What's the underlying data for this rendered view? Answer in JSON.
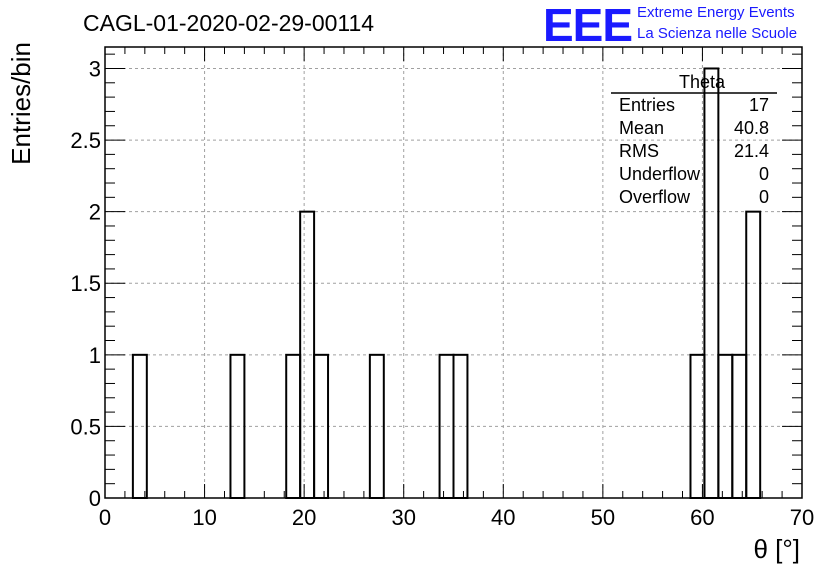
{
  "header": {
    "title": "CAGL-01-2020-02-29-00114",
    "logo_text": "EEE",
    "logo_line1": "Extreme Energy Events",
    "logo_line2": "La Scienza nelle Scuole"
  },
  "stats_box": {
    "name": "Theta",
    "rows": [
      {
        "label": "Entries",
        "value": "17"
      },
      {
        "label": "Mean",
        "value": "40.8"
      },
      {
        "label": "RMS",
        "value": "21.4"
      },
      {
        "label": "Underflow",
        "value": "0"
      },
      {
        "label": "Overflow",
        "value": "0"
      }
    ]
  },
  "colors": {
    "logo": "#1a1aff",
    "grid": "#a0a0a0",
    "line": "#000000"
  },
  "chart_data": {
    "type": "bar",
    "title": "CAGL-01-2020-02-29-00114",
    "xlabel": "θ [°]",
    "ylabel": "Entries/bin",
    "xlim": [
      0,
      70
    ],
    "ylim": [
      0,
      3.15
    ],
    "grid": true,
    "xticks": [
      "0",
      "10",
      "20",
      "30",
      "40",
      "50",
      "60",
      "70"
    ],
    "yticks": [
      "0",
      "0.5",
      "1",
      "1.5",
      "2",
      "2.5",
      "3"
    ],
    "bins": [
      {
        "x0": 2.8,
        "x1": 4.2,
        "value": 1
      },
      {
        "x0": 12.6,
        "x1": 14.0,
        "value": 1
      },
      {
        "x0": 18.2,
        "x1": 19.6,
        "value": 1
      },
      {
        "x0": 19.6,
        "x1": 21.0,
        "value": 2
      },
      {
        "x0": 21.0,
        "x1": 22.4,
        "value": 1
      },
      {
        "x0": 26.6,
        "x1": 28.0,
        "value": 1
      },
      {
        "x0": 33.6,
        "x1": 35.0,
        "value": 1
      },
      {
        "x0": 35.0,
        "x1": 36.4,
        "value": 1
      },
      {
        "x0": 58.8,
        "x1": 60.2,
        "value": 1
      },
      {
        "x0": 60.2,
        "x1": 61.6,
        "value": 3
      },
      {
        "x0": 61.6,
        "x1": 63.0,
        "value": 1
      },
      {
        "x0": 63.0,
        "x1": 64.4,
        "value": 1
      },
      {
        "x0": 64.4,
        "x1": 65.8,
        "value": 2
      }
    ]
  }
}
